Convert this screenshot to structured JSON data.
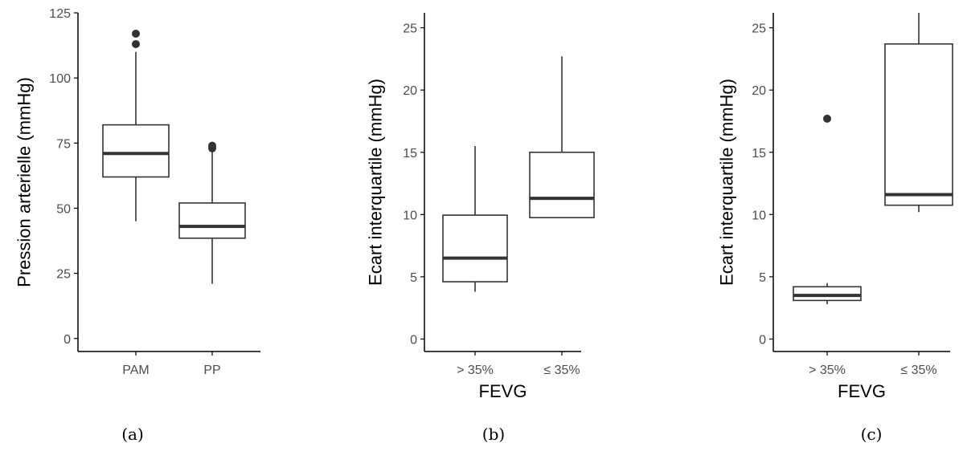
{
  "colors": {
    "box_stroke": "#333333",
    "axis": "#000000",
    "tick_text": "#4d4d4d"
  },
  "chart_data": [
    {
      "type": "box",
      "caption": "(a)",
      "ylabel": "Pression arterielle (mmHg)",
      "xlabel": "",
      "ylim": [
        -5,
        125
      ],
      "yticks": [
        0,
        25,
        50,
        75,
        100,
        125
      ],
      "categories": [
        "PAM",
        "PP"
      ],
      "boxes": [
        {
          "category": "PAM",
          "whisker_low": 45,
          "q1": 62,
          "median": 71,
          "q3": 82,
          "whisker_high": 110,
          "outliers": [
            113,
            117
          ]
        },
        {
          "category": "PP",
          "whisker_low": 21,
          "q1": 38.5,
          "median": 43,
          "q3": 52,
          "whisker_high": 72,
          "outliers": [
            73,
            74
          ]
        }
      ]
    },
    {
      "type": "box",
      "caption": "(b)",
      "ylabel": "Ecart interquartile (mmHg)",
      "xlabel": "FEVG",
      "ylim": [
        -1,
        26.2
      ],
      "yticks": [
        0,
        5,
        10,
        15,
        20,
        25
      ],
      "categories": [
        "> 35%",
        "≤ 35%"
      ],
      "boxes": [
        {
          "category": "> 35%",
          "whisker_low": 3.8,
          "q1": 4.6,
          "median": 6.5,
          "q3": 9.95,
          "whisker_high": 15.5,
          "outliers": []
        },
        {
          "category": "≤ 35%",
          "whisker_low": 9.7,
          "q1": 9.75,
          "median": 11.3,
          "q3": 15,
          "whisker_high": 22.7,
          "outliers": []
        }
      ]
    },
    {
      "type": "box",
      "caption": "(c)",
      "ylabel": "Ecart interquartile (mmHg)",
      "xlabel": "FEVG",
      "ylim": [
        -1,
        26.2
      ],
      "yticks": [
        0,
        5,
        10,
        15,
        20,
        25
      ],
      "categories": [
        "> 35%",
        "≤ 35%"
      ],
      "boxes": [
        {
          "category": "> 35%",
          "whisker_low": 2.8,
          "q1": 3.1,
          "median": 3.5,
          "q3": 4.2,
          "whisker_high": 4.5,
          "outliers": [
            17.7
          ]
        },
        {
          "category": "≤ 35%",
          "whisker_low": 10.2,
          "q1": 10.75,
          "median": 11.6,
          "q3": 23.7,
          "whisker_high": 26.5,
          "outliers": []
        }
      ]
    }
  ]
}
